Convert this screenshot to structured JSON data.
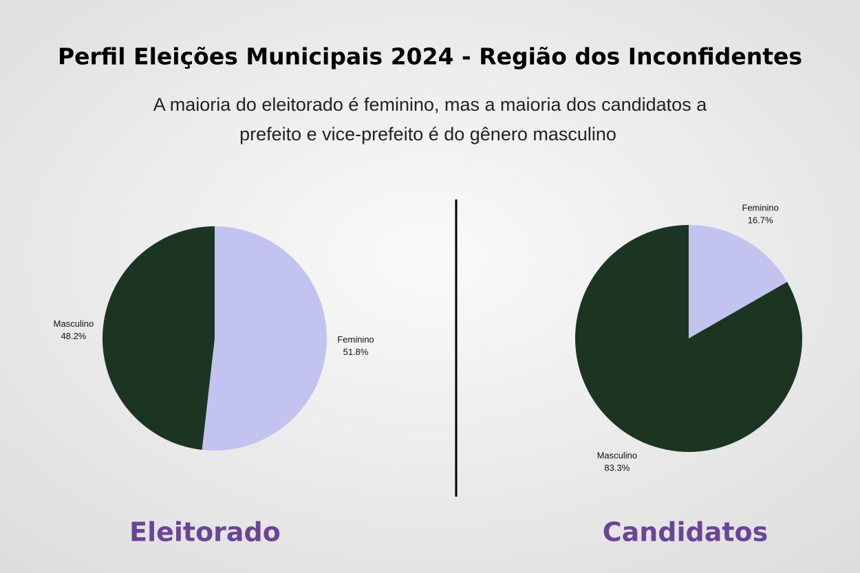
{
  "header": {
    "title": "Perfil Eleições Municipais 2024 - Região dos Inconfidentes",
    "subtitle": [
      "A maioria do eleitorado é feminino, mas a maioria dos candidatos a",
      "prefeito e vice-prefeito é do gênero masculino"
    ]
  },
  "chart_data": [
    {
      "type": "pie",
      "title": "Eleitorado",
      "categories": [
        "Feminino",
        "Masculino"
      ],
      "values": [
        51.8,
        48.2
      ],
      "value_labels": [
        "51.8%",
        "48.2%"
      ],
      "colors": [
        "#c2c4ef",
        "#1b3522"
      ]
    },
    {
      "type": "pie",
      "title": "Candidatos",
      "categories": [
        "Feminino",
        "Masculino"
      ],
      "values": [
        16.7,
        83.3
      ],
      "value_labels": [
        "16.7%",
        "83.3%"
      ],
      "colors": [
        "#c2c4ef",
        "#1b3522"
      ]
    }
  ]
}
